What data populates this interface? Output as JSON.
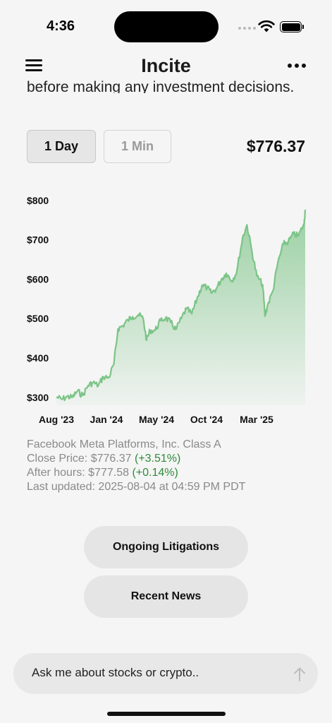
{
  "status_bar": {
    "time": "4:36"
  },
  "header": {
    "title": "Incite"
  },
  "disclaimer_tail": "before making any investment decisions.",
  "range": {
    "day_label": "1 Day",
    "min_label": "1 Min"
  },
  "current_price": "$776.37",
  "chart_data": {
    "type": "area",
    "title": "",
    "xlabel": "",
    "ylabel": "",
    "y_tick_labels": [
      "$800",
      "$700",
      "$600",
      "$500",
      "$400",
      "$300"
    ],
    "x_tick_labels": [
      "Aug '23",
      "Jan '24",
      "May '24",
      "Oct '24",
      "Mar '25"
    ],
    "ylim": [
      280,
      805
    ],
    "grid": false,
    "legend": "none",
    "line_color": "#7cc487",
    "series": [
      {
        "x": [
          "2023-08-04",
          "2023-08-20",
          "2023-09-05",
          "2023-09-20",
          "2023-10-05",
          "2023-10-20",
          "2023-11-05",
          "2023-11-20",
          "2023-12-05",
          "2023-12-20",
          "2024-01-05",
          "2024-01-20",
          "2024-02-01",
          "2024-02-15",
          "2024-03-01",
          "2024-03-15",
          "2024-04-01",
          "2024-04-15",
          "2024-04-25",
          "2024-05-05",
          "2024-05-20",
          "2024-06-05",
          "2024-06-20",
          "2024-07-05",
          "2024-07-20",
          "2024-08-05",
          "2024-08-20",
          "2024-09-05",
          "2024-09-20",
          "2024-10-05",
          "2024-10-20",
          "2024-11-01",
          "2024-11-15",
          "2024-12-01",
          "2024-12-15",
          "2025-01-01",
          "2025-01-15",
          "2025-02-01",
          "2025-02-14",
          "2025-03-01",
          "2025-03-15",
          "2025-04-01",
          "2025-04-08",
          "2025-04-15",
          "2025-05-01",
          "2025-05-15",
          "2025-06-01",
          "2025-06-15",
          "2025-07-01",
          "2025-07-15",
          "2025-08-01",
          "2025-08-04"
        ],
        "y": [
          301,
          295,
          302,
          300,
          316,
          305,
          330,
          338,
          330,
          352,
          350,
          385,
          474,
          482,
          496,
          505,
          510,
          500,
          445,
          470,
          470,
          495,
          502,
          490,
          472,
          500,
          525,
          512,
          550,
          585,
          578,
          565,
          575,
          600,
          615,
          596,
          620,
          705,
          738,
          668,
          608,
          586,
          506,
          533,
          570,
          640,
          690,
          695,
          715,
          710,
          742,
          776.37
        ]
      }
    ]
  },
  "info": {
    "company": "Facebook Meta Platforms, Inc. Class A",
    "close_label": "Close Price: $776.37",
    "close_change": "(+3.51%)",
    "after_label": "After hours: $777.58",
    "after_change": "(+0.14%)",
    "updated": "Last updated: 2025-08-04 at 04:59 PM PDT"
  },
  "actions": {
    "litigations": "Ongoing Litigations",
    "news": "Recent News"
  },
  "chat": {
    "placeholder": "Ask me about stocks or crypto.."
  }
}
